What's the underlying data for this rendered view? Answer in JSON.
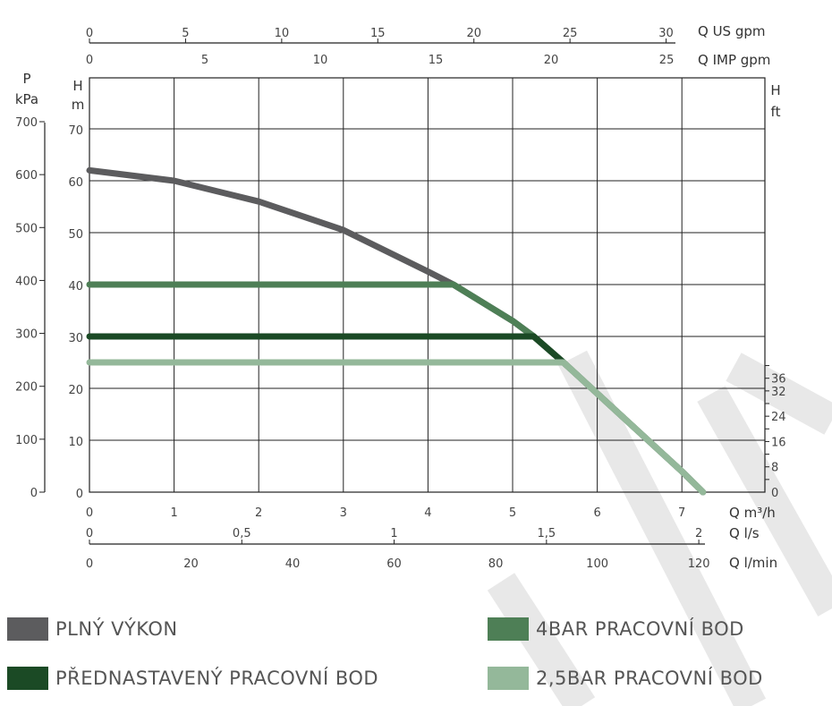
{
  "chart_data": {
    "type": "line",
    "xlabel": "Q m³/h",
    "ylabel": "H m",
    "xlim": [
      0,
      8
    ],
    "ylim": [
      0,
      70
    ],
    "grid": true,
    "x_ticks": [
      "0",
      "1",
      "2",
      "3",
      "4",
      "5",
      "6",
      "7"
    ],
    "y_ticks": [
      "0",
      "10",
      "20",
      "30",
      "40",
      "50",
      "60",
      "70"
    ],
    "axes": {
      "x_us_gpm": {
        "label": "Q US gpm",
        "ticks": [
          "0",
          "5",
          "10",
          "15",
          "20",
          "25",
          "30"
        ]
      },
      "x_imp_gpm": {
        "label": "Q IMP gpm",
        "ticks": [
          "0",
          "5",
          "10",
          "15",
          "20",
          "25"
        ]
      },
      "x_ls": {
        "label": "Q l/s",
        "ticks": [
          "0",
          "0,5",
          "1",
          "1,5",
          "2"
        ]
      },
      "x_lmin": {
        "label": "Q l/min",
        "ticks": [
          "0",
          "20",
          "40",
          "60",
          "80",
          "100",
          "120"
        ]
      },
      "y_kpa": {
        "label_p": "P",
        "label_unit": "kPa",
        "ticks": [
          "0",
          "100",
          "200",
          "300",
          "400",
          "500",
          "600",
          "700"
        ]
      },
      "y_m": {
        "label_h": "H",
        "label_unit": "m"
      },
      "y_ft": {
        "label_h": "H",
        "label_unit": "ft",
        "ticks": [
          "0",
          "8",
          "16",
          "24",
          "32",
          "36"
        ]
      }
    },
    "series": [
      {
        "name": "PLNÝ VÝKON",
        "color": "#5c5c5e",
        "x": [
          0,
          1,
          2,
          3,
          4,
          4.3,
          5,
          5.25,
          5.6,
          6,
          6.5,
          7,
          7.25
        ],
        "y": [
          62,
          60,
          56,
          50.5,
          42.5,
          40,
          33,
          30,
          25,
          19,
          11.5,
          4,
          0
        ]
      },
      {
        "name": "4BAR PRACOVNÍ BOD",
        "color": "#4e7f56",
        "x": [
          0,
          4.3,
          5,
          5.25,
          5.6,
          6,
          6.5,
          7,
          7.25
        ],
        "y": [
          40,
          40,
          33,
          30,
          25,
          19,
          11.5,
          4,
          0
        ]
      },
      {
        "name": "PŘEDNASTAVENÝ PRACOVNÍ BOD",
        "color": "#1b4a25",
        "x": [
          0,
          5.25,
          5.6
        ],
        "y": [
          30,
          30,
          25
        ]
      },
      {
        "name": "2,5BAR PRACOVNÍ BOD",
        "color": "#94b89a",
        "x": [
          0,
          5.6,
          6,
          6.5,
          7,
          7.25
        ],
        "y": [
          25,
          25,
          19,
          11.5,
          4,
          0
        ]
      }
    ]
  },
  "legend": [
    {
      "label": "PLNÝ VÝKON",
      "color": "#5c5c5e"
    },
    {
      "label": "4BAR PRACOVNÍ BOD",
      "color": "#4e7f56"
    },
    {
      "label": "PŘEDNASTAVENÝ PRACOVNÍ BOD",
      "color": "#1b4a25"
    },
    {
      "label": "2,5BAR PRACOVNÍ BOD",
      "color": "#94b89a"
    }
  ],
  "watermark_color": "#e8e8e8"
}
